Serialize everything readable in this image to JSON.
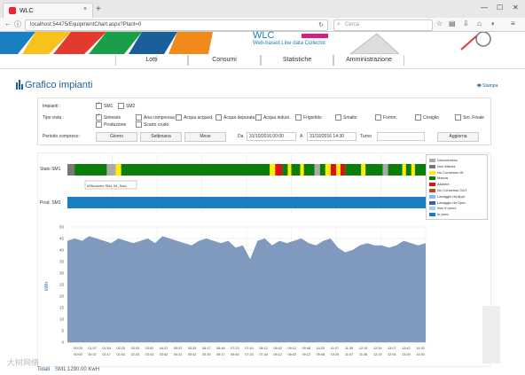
{
  "browser": {
    "tab_title": "WLC",
    "url": "localhost:54475/EquipmentChart.aspx?Plant=0",
    "search_placeholder": "Cerca",
    "new_tab": "+",
    "close_tab": "×"
  },
  "header": {
    "title": "WLC",
    "subtitle": "Web-based Line data Collector",
    "menu": [
      "Lotti",
      "Consumi",
      "Statistiche",
      "Amministrazione"
    ]
  },
  "page": {
    "title": "Grafico impianti",
    "print_label": "Stampa"
  },
  "filters": {
    "impianti_label": "Impianti :",
    "impianti": [
      {
        "label": "SM1",
        "checked": true
      },
      {
        "label": "SM2",
        "checked": false
      }
    ],
    "tipo_label": "Tipo vista :",
    "tipo_row1": [
      {
        "label": "Sintesi/e",
        "checked": true
      },
      {
        "label": "Aria compressa",
        "checked": false
      },
      {
        "label": "Acqua acqued.",
        "checked": false
      },
      {
        "label": "Acqua depurata",
        "checked": false
      },
      {
        "label": "Acqua indust.",
        "checked": false
      },
      {
        "label": "Frigoriblo",
        "checked": false
      },
      {
        "label": "Smalto",
        "checked": false
      },
      {
        "label": "Fornm.",
        "checked": false
      },
      {
        "label": "Cnsiglio",
        "checked": false
      },
      {
        "label": "Sm. Finale",
        "checked": false
      }
    ],
    "tipo_row2": [
      {
        "label": "Produzione",
        "checked": false
      },
      {
        "label": "Scarto crudo",
        "checked": false
      }
    ],
    "periodo_label": "Periodo compreso :",
    "btn_giorno": "Giorno",
    "btn_settimana": "Settimana",
    "btn_mese": "Mese",
    "da_label": "Da",
    "da_value": "31/10/2016 00:00",
    "a_label": "A",
    "a_value": "31/10/2016 14:30",
    "turno_label": "Turno",
    "turno_value": "",
    "btn_aggiorna": "Aggiorna"
  },
  "charts": {
    "stato_label": "Stato SM1",
    "prod_label": "Prod. SM1",
    "tooltip": "#Sfuoanno SM1 04_Sola",
    "legend": [
      {
        "label": "Disconnesso",
        "color": "#aaaaaa"
      },
      {
        "label": "Non Marcia",
        "color": "#777777"
      },
      {
        "label": "No Consenso IN",
        "color": "#ffee00"
      },
      {
        "label": "Marcia",
        "color": "#0a7d0a"
      },
      {
        "label": "Allarme",
        "color": "#dd1111"
      },
      {
        "label": "No Consenso OUT",
        "color": "#b05020"
      },
      {
        "label": "Lavaggio da Appl.",
        "color": "#88bbee"
      },
      {
        "label": "Lavaggio da Oper.",
        "color": "#2a6ab0"
      },
      {
        "label": "Non in prod.",
        "color": "#a0d0f0"
      },
      {
        "label": "In prod.",
        "color": "#1a7fc1"
      }
    ],
    "status_segments": [
      {
        "state": "Non Marcia",
        "start": 0,
        "end": 0.02
      },
      {
        "state": "Marcia",
        "start": 0.02,
        "end": 0.11
      },
      {
        "state": "Disconnesso",
        "start": 0.11,
        "end": 0.135
      },
      {
        "state": "No Consenso IN",
        "start": 0.135,
        "end": 0.15
      },
      {
        "state": "Marcia",
        "start": 0.15,
        "end": 0.565
      },
      {
        "state": "No Consenso IN",
        "start": 0.565,
        "end": 0.58
      },
      {
        "state": "Allarme",
        "start": 0.58,
        "end": 0.6
      },
      {
        "state": "Marcia",
        "start": 0.6,
        "end": 0.615
      },
      {
        "state": "No Consenso IN",
        "start": 0.615,
        "end": 0.625
      },
      {
        "state": "Marcia",
        "start": 0.625,
        "end": 0.65
      },
      {
        "state": "No Consenso IN",
        "start": 0.65,
        "end": 0.66
      },
      {
        "state": "Marcia",
        "start": 0.66,
        "end": 0.69
      },
      {
        "state": "Disconnesso",
        "start": 0.69,
        "end": 0.705
      },
      {
        "state": "Marcia",
        "start": 0.705,
        "end": 0.72
      },
      {
        "state": "No Consenso IN",
        "start": 0.72,
        "end": 0.735
      },
      {
        "state": "Allarme",
        "start": 0.735,
        "end": 0.75
      },
      {
        "state": "No Consenso IN",
        "start": 0.75,
        "end": 0.762
      },
      {
        "state": "Allarme",
        "start": 0.762,
        "end": 0.775
      },
      {
        "state": "Marcia",
        "start": 0.775,
        "end": 0.82
      },
      {
        "state": "No Consenso IN",
        "start": 0.82,
        "end": 0.832
      },
      {
        "state": "Marcia",
        "start": 0.832,
        "end": 0.88
      },
      {
        "state": "Disconnesso",
        "start": 0.88,
        "end": 0.895
      },
      {
        "state": "Marcia",
        "start": 0.895,
        "end": 0.935
      },
      {
        "state": "No Consenso IN",
        "start": 0.935,
        "end": 0.945
      },
      {
        "state": "Marcia",
        "start": 0.945,
        "end": 0.96
      },
      {
        "state": "No Consenso IN",
        "start": 0.96,
        "end": 0.97
      },
      {
        "state": "Marcia",
        "start": 0.97,
        "end": 1.0
      }
    ],
    "production": {
      "state": "In prod.",
      "start": 0,
      "end": 1
    }
  },
  "chart_data": {
    "type": "area",
    "title": "",
    "xlabel": "",
    "ylabel": "kWh",
    "ylim": [
      0,
      50
    ],
    "yticks": [
      0,
      5,
      10,
      15,
      20,
      25,
      30,
      35,
      40,
      45,
      50
    ],
    "xtick_labels_top": [
      "00:29",
      "01:07",
      "01:54",
      "02:25",
      "03:03",
      "03:52",
      "04:22",
      "05:02",
      "05:39",
      "06:17",
      "06:46",
      "07:23",
      "07:44",
      "08:12",
      "08:42",
      "09:12",
      "09:48",
      "10:25",
      "11:07",
      "11:36",
      "12:19",
      "12:34",
      "13:07",
      "13:42",
      "14:30"
    ],
    "xtick_labels_bottom": [
      "00:00",
      "00:37",
      "01:17",
      "01:54",
      "02:25",
      "03:03",
      "03:52",
      "04:22",
      "05:02",
      "05:39",
      "06:17",
      "06:46",
      "07:23",
      "07:44",
      "08:12",
      "08:42",
      "09:12",
      "09:48",
      "10:25",
      "11:07",
      "11:36",
      "12:19",
      "12:54",
      "13:29",
      "14:30"
    ],
    "series": [
      {
        "values": [
          44,
          45,
          44,
          46,
          45,
          44,
          43,
          45,
          44,
          43,
          44,
          45,
          43,
          46,
          45,
          44,
          43,
          42,
          44,
          45,
          44,
          43,
          44,
          41,
          42,
          36,
          44,
          45,
          42,
          44,
          43,
          44,
          45,
          43,
          42,
          44,
          45,
          41,
          39,
          40,
          42,
          43,
          42,
          42,
          41,
          42,
          44,
          43,
          42,
          43
        ]
      }
    ],
    "color": "#7f99bf"
  },
  "footer": {
    "label": "Totali",
    "value": "SM1 1290.00 KwH"
  },
  "watermark": "大树网络"
}
